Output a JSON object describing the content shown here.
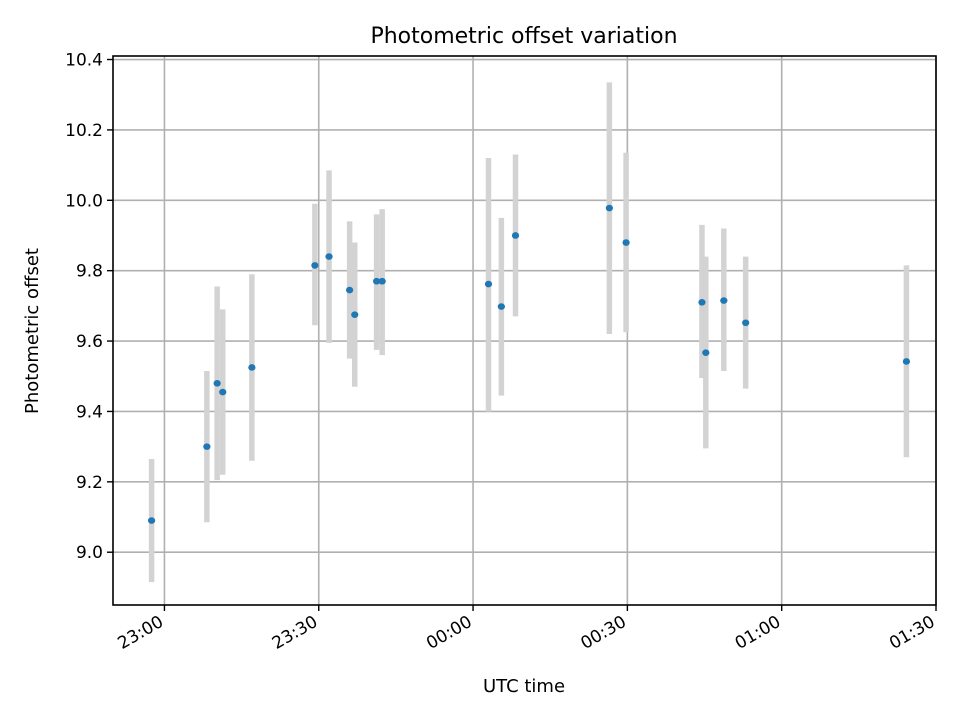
{
  "chart_data": {
    "type": "scatter",
    "title": "Photometric offset variation",
    "xlabel": "UTC time",
    "ylabel": "Photometric offset",
    "grid": true,
    "x_axis": {
      "type": "time",
      "min": "22:50",
      "max": "01:30",
      "ticks": [
        "23:00",
        "23:30",
        "00:00",
        "00:30",
        "01:00",
        "01:30"
      ]
    },
    "y_axis": {
      "min": 8.85,
      "max": 10.41,
      "ticks": [
        "9.0",
        "9.2",
        "9.4",
        "9.6",
        "9.8",
        "10.0",
        "10.2",
        "10.4"
      ]
    },
    "colors": {
      "point": "#1f77b4",
      "errorbar": "#d3d3d3"
    },
    "points": [
      {
        "t": "22:57:30",
        "y": 9.09,
        "lo": 8.915,
        "hi": 9.265
      },
      {
        "t": "23:08:15",
        "y": 9.3,
        "lo": 9.085,
        "hi": 9.515
      },
      {
        "t": "23:10:15",
        "y": 9.48,
        "lo": 9.205,
        "hi": 9.755
      },
      {
        "t": "23:11:20",
        "y": 9.455,
        "lo": 9.22,
        "hi": 9.69
      },
      {
        "t": "23:17:00",
        "y": 9.525,
        "lo": 9.26,
        "hi": 9.79
      },
      {
        "t": "23:29:15",
        "y": 9.815,
        "lo": 9.645,
        "hi": 9.99
      },
      {
        "t": "23:32:00",
        "y": 9.84,
        "lo": 9.595,
        "hi": 10.085
      },
      {
        "t": "23:36:00",
        "y": 9.745,
        "lo": 9.55,
        "hi": 9.94
      },
      {
        "t": "23:37:00",
        "y": 9.675,
        "lo": 9.47,
        "hi": 9.88
      },
      {
        "t": "23:41:15",
        "y": 9.77,
        "lo": 9.575,
        "hi": 9.96
      },
      {
        "t": "23:42:20",
        "y": 9.77,
        "lo": 9.56,
        "hi": 9.975
      },
      {
        "t": "00:03:00",
        "y": 9.762,
        "lo": 9.4,
        "hi": 10.12
      },
      {
        "t": "00:05:30",
        "y": 9.698,
        "lo": 9.445,
        "hi": 9.95
      },
      {
        "t": "00:08:15",
        "y": 9.9,
        "lo": 9.67,
        "hi": 10.13
      },
      {
        "t": "00:26:30",
        "y": 9.978,
        "lo": 9.62,
        "hi": 10.335
      },
      {
        "t": "00:29:45",
        "y": 9.88,
        "lo": 9.625,
        "hi": 10.135
      },
      {
        "t": "00:44:30",
        "y": 9.71,
        "lo": 9.495,
        "hi": 9.93
      },
      {
        "t": "00:45:15",
        "y": 9.567,
        "lo": 9.295,
        "hi": 9.84
      },
      {
        "t": "00:48:45",
        "y": 9.715,
        "lo": 9.515,
        "hi": 9.92
      },
      {
        "t": "00:53:00",
        "y": 9.652,
        "lo": 9.465,
        "hi": 9.84
      },
      {
        "t": "01:24:15",
        "y": 9.542,
        "lo": 9.27,
        "hi": 9.815
      }
    ]
  }
}
